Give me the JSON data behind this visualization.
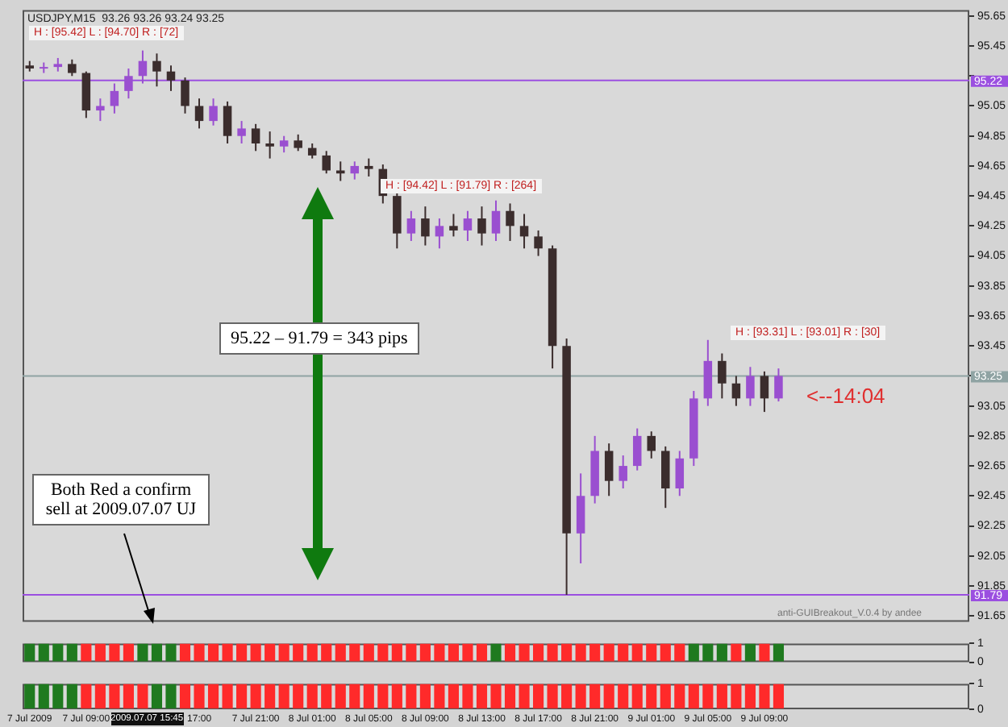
{
  "chart_data": [
    {
      "type": "candlestick",
      "title": "USDJPY,M15  93.26 93.26 93.24 93.25",
      "categories": [
        null,
        null,
        null,
        null,
        null,
        null,
        null,
        null,
        null,
        null,
        null,
        null,
        null,
        null,
        null,
        null,
        null,
        null,
        null,
        null,
        null,
        null,
        null,
        null,
        null,
        null,
        null,
        null,
        null,
        null,
        null,
        null,
        null,
        null,
        null,
        null,
        null,
        null,
        null,
        null,
        null,
        null,
        null,
        null,
        null,
        null,
        null,
        null,
        null,
        null,
        null,
        null,
        null,
        null,
        null,
        null,
        null,
        null,
        null,
        null,
        null,
        null,
        null,
        null,
        null,
        null,
        null
      ],
      "ohlc": [
        [
          95.32,
          95.35,
          95.28,
          95.3
        ],
        [
          95.3,
          95.34,
          95.27,
          95.31
        ],
        [
          95.31,
          95.37,
          95.28,
          95.33
        ],
        [
          95.33,
          95.36,
          95.25,
          95.27
        ],
        [
          95.27,
          95.28,
          94.97,
          95.02
        ],
        [
          95.02,
          95.1,
          94.95,
          95.05
        ],
        [
          95.05,
          95.2,
          95.0,
          95.15
        ],
        [
          95.15,
          95.3,
          95.1,
          95.25
        ],
        [
          95.25,
          95.42,
          95.2,
          95.35
        ],
        [
          95.35,
          95.4,
          95.18,
          95.28
        ],
        [
          95.28,
          95.32,
          95.15,
          95.22
        ],
        [
          95.22,
          95.24,
          95.0,
          95.05
        ],
        [
          95.05,
          95.1,
          94.9,
          94.95
        ],
        [
          94.95,
          95.1,
          94.92,
          95.05
        ],
        [
          95.05,
          95.08,
          94.8,
          94.85
        ],
        [
          94.85,
          94.95,
          94.8,
          94.9
        ],
        [
          94.9,
          94.93,
          94.75,
          94.8
        ],
        [
          94.8,
          94.88,
          94.7,
          94.78
        ],
        [
          94.78,
          94.85,
          94.74,
          94.82
        ],
        [
          94.82,
          94.86,
          94.75,
          94.77
        ],
        [
          94.77,
          94.8,
          94.7,
          94.72
        ],
        [
          94.72,
          94.75,
          94.6,
          94.62
        ],
        [
          94.62,
          94.68,
          94.55,
          94.6
        ],
        [
          94.6,
          94.68,
          94.56,
          94.65
        ],
        [
          94.65,
          94.7,
          94.58,
          94.63
        ],
        [
          94.63,
          94.66,
          94.4,
          94.45
        ],
        [
          94.45,
          94.48,
          94.1,
          94.2
        ],
        [
          94.2,
          94.35,
          94.15,
          94.3
        ],
        [
          94.3,
          94.38,
          94.12,
          94.18
        ],
        [
          94.18,
          94.3,
          94.1,
          94.25
        ],
        [
          94.25,
          94.33,
          94.18,
          94.22
        ],
        [
          94.22,
          94.35,
          94.15,
          94.3
        ],
        [
          94.3,
          94.38,
          94.12,
          94.2
        ],
        [
          94.2,
          94.42,
          94.15,
          94.35
        ],
        [
          94.35,
          94.4,
          94.15,
          94.25
        ],
        [
          94.25,
          94.33,
          94.1,
          94.18
        ],
        [
          94.18,
          94.22,
          94.05,
          94.1
        ],
        [
          94.1,
          94.12,
          93.3,
          93.45
        ],
        [
          93.45,
          93.5,
          91.79,
          92.2
        ],
        [
          92.2,
          92.6,
          92.0,
          92.45
        ],
        [
          92.45,
          92.85,
          92.4,
          92.75
        ],
        [
          92.75,
          92.8,
          92.45,
          92.55
        ],
        [
          92.55,
          92.72,
          92.5,
          92.65
        ],
        [
          92.65,
          92.9,
          92.62,
          92.85
        ],
        [
          92.85,
          92.88,
          92.7,
          92.75
        ],
        [
          92.75,
          92.78,
          92.37,
          92.5
        ],
        [
          92.5,
          92.75,
          92.45,
          92.7
        ],
        [
          92.7,
          93.15,
          92.65,
          93.1
        ],
        [
          93.1,
          93.49,
          93.05,
          93.35
        ],
        [
          93.35,
          93.4,
          93.1,
          93.2
        ],
        [
          93.2,
          93.25,
          93.05,
          93.1
        ],
        [
          93.1,
          93.31,
          93.05,
          93.25
        ],
        [
          93.25,
          93.28,
          93.01,
          93.1
        ],
        [
          93.1,
          93.3,
          93.08,
          93.25
        ],
        null,
        null,
        null,
        null,
        null,
        null,
        null,
        null,
        null,
        null,
        null,
        null,
        null
      ],
      "colors": [
        "#3b2d2d",
        "#9a4fd0",
        "#9a4fd0",
        "#3b2d2d",
        "#3b2d2d",
        "#9a4fd0",
        "#9a4fd0",
        "#9a4fd0",
        "#9a4fd0",
        "#3b2d2d",
        "#3b2d2d",
        "#3b2d2d",
        "#3b2d2d",
        "#9a4fd0",
        "#3b2d2d",
        "#9a4fd0",
        "#3b2d2d",
        "#3b2d2d",
        "#9a4fd0",
        "#3b2d2d",
        "#3b2d2d",
        "#3b2d2d",
        "#3b2d2d",
        "#9a4fd0",
        "#3b2d2d",
        "#3b2d2d",
        "#3b2d2d",
        "#9a4fd0",
        "#3b2d2d",
        "#9a4fd0",
        "#3b2d2d",
        "#9a4fd0",
        "#3b2d2d",
        "#9a4fd0",
        "#3b2d2d",
        "#3b2d2d",
        "#3b2d2d",
        "#3b2d2d",
        "#3b2d2d",
        "#9a4fd0",
        "#9a4fd0",
        "#3b2d2d",
        "#9a4fd0",
        "#9a4fd0",
        "#3b2d2d",
        "#3b2d2d",
        "#9a4fd0",
        "#9a4fd0",
        "#9a4fd0",
        "#3b2d2d",
        "#3b2d2d",
        "#9a4fd0",
        "#3b2d2d",
        "#9a4fd0",
        null,
        null,
        null,
        null,
        null,
        null,
        null,
        null,
        null,
        null,
        null,
        null,
        null
      ],
      "ylim": [
        91.61,
        95.69
      ],
      "yticks": [
        95.65,
        95.45,
        {
          "value": 95.25,
          "label": null
        },
        95.05,
        94.85,
        94.65,
        94.45,
        94.25,
        94.05,
        93.85,
        93.65,
        93.45,
        {
          "value": 93.25,
          "label": null
        },
        93.05,
        92.85,
        92.65,
        92.45,
        92.25,
        92.05,
        91.85,
        91.65
      ],
      "ref_lines": [
        {
          "axis": "y",
          "value": 95.22,
          "label": "95.22",
          "color": "#9b4fe0"
        },
        {
          "axis": "y",
          "value": 91.79,
          "label": "91.79",
          "color": "#9b4fe0"
        },
        {
          "axis": "y",
          "value": 93.25,
          "label": "93.25",
          "color": "#8fa3a3"
        }
      ],
      "annotations": [
        "H : [95.42]   L : [94.70]   R : [72]",
        "H : [94.42]   L : [91.79]   R : [264]",
        "H : [93.31]   L : [93.01]   R : [30]",
        "95.22 – 91.79 = 343 pips",
        "Both Red a confirm sell at 2009.07.07 UJ",
        "<--14:04",
        "anti-GUIBreakout_V.0.4 by andee",
        "2009.07.07 15:45"
      ],
      "tick_labels": "y"
    },
    {
      "type": "bar",
      "categories": [
        null,
        null,
        null,
        null,
        null,
        null,
        null,
        null,
        null,
        null,
        null,
        null,
        null,
        null,
        null,
        null,
        null,
        null,
        null,
        null,
        null,
        null,
        null,
        null,
        null,
        null,
        null,
        null,
        null,
        null,
        null,
        null,
        null,
        null,
        null,
        null,
        null,
        null,
        null,
        null,
        null,
        null,
        null,
        null,
        null,
        null,
        null,
        null,
        null,
        null,
        null,
        null,
        null,
        null,
        null,
        null,
        null,
        null,
        null,
        null,
        null,
        null,
        null,
        null,
        null,
        null,
        null
      ],
      "values": [
        1,
        1,
        1,
        1,
        1,
        1,
        1,
        1,
        1,
        1,
        1,
        1,
        1,
        1,
        1,
        1,
        1,
        1,
        1,
        1,
        1,
        1,
        1,
        1,
        1,
        1,
        1,
        1,
        1,
        1,
        1,
        1,
        1,
        1,
        1,
        1,
        1,
        1,
        1,
        1,
        1,
        1,
        1,
        1,
        1,
        1,
        1,
        1,
        1,
        1,
        1,
        1,
        1,
        1,
        null,
        null,
        null,
        null,
        null,
        null,
        null,
        null,
        null,
        null,
        null,
        null,
        null
      ],
      "colors": [
        "#1f7a1f",
        "#1f7a1f",
        "#1f7a1f",
        "#1f7a1f",
        "#ff2a2a",
        "#ff2a2a",
        "#ff2a2a",
        "#ff2a2a",
        "#1f7a1f",
        "#1f7a1f",
        "#1f7a1f",
        "#ff2a2a",
        "#ff2a2a",
        "#ff2a2a",
        "#ff2a2a",
        "#ff2a2a",
        "#ff2a2a",
        "#ff2a2a",
        "#ff2a2a",
        "#ff2a2a",
        "#ff2a2a",
        "#ff2a2a",
        "#ff2a2a",
        "#ff2a2a",
        "#ff2a2a",
        "#ff2a2a",
        "#ff2a2a",
        "#ff2a2a",
        "#ff2a2a",
        "#ff2a2a",
        "#ff2a2a",
        "#ff2a2a",
        "#ff2a2a",
        "#1f7a1f",
        "#ff2a2a",
        "#ff2a2a",
        "#ff2a2a",
        "#ff2a2a",
        "#ff2a2a",
        "#ff2a2a",
        "#ff2a2a",
        "#ff2a2a",
        "#ff2a2a",
        "#ff2a2a",
        "#ff2a2a",
        "#ff2a2a",
        "#ff2a2a",
        "#1f7a1f",
        "#1f7a1f",
        "#1f7a1f",
        "#ff2a2a",
        "#1f7a1f",
        "#ff2a2a",
        "#1f7a1f",
        null,
        null,
        null,
        null,
        null,
        null,
        null,
        null,
        null,
        null,
        null,
        null,
        null
      ],
      "ylim": [
        0,
        1
      ],
      "yticks": [
        0,
        1
      ],
      "tick_labels": "y"
    },
    {
      "type": "bar",
      "categories": [
        "7 Jul 2009",
        null,
        null,
        null,
        "7 Jul 09:00",
        null,
        null,
        null,
        null,
        null,
        null,
        null,
        "17:00",
        null,
        null,
        null,
        "7 Jul 21:00",
        null,
        null,
        null,
        "8 Jul 01:00",
        null,
        null,
        null,
        "8 Jul 05:00",
        null,
        null,
        null,
        "8 Jul 09:00",
        null,
        null,
        null,
        "8 Jul 13:00",
        null,
        null,
        null,
        "8 Jul 17:00",
        null,
        null,
        null,
        "8 Jul 21:00",
        null,
        null,
        null,
        "9 Jul 01:00",
        null,
        null,
        null,
        "9 Jul 05:00",
        null,
        null,
        null,
        "9 Jul 09:00",
        null,
        null,
        null,
        null,
        null,
        null,
        null,
        null,
        null,
        null,
        null,
        null,
        null,
        null
      ],
      "values": [
        1,
        1,
        1,
        1,
        1,
        1,
        1,
        1,
        1,
        1,
        1,
        1,
        1,
        1,
        1,
        1,
        1,
        1,
        1,
        1,
        1,
        1,
        1,
        1,
        1,
        1,
        1,
        1,
        1,
        1,
        1,
        1,
        1,
        1,
        1,
        1,
        1,
        1,
        1,
        1,
        1,
        1,
        1,
        1,
        1,
        1,
        1,
        1,
        1,
        1,
        1,
        1,
        1,
        1,
        null,
        null,
        null,
        null,
        null,
        null,
        null,
        null,
        null,
        null,
        null,
        null,
        null
      ],
      "colors": [
        "#1f7a1f",
        "#1f7a1f",
        "#1f7a1f",
        "#1f7a1f",
        "#ff2a2a",
        "#ff2a2a",
        "#ff2a2a",
        "#ff2a2a",
        "#ff2a2a",
        "#1f7a1f",
        "#1f7a1f",
        "#ff2a2a",
        "#ff2a2a",
        "#ff2a2a",
        "#ff2a2a",
        "#ff2a2a",
        "#ff2a2a",
        "#ff2a2a",
        "#ff2a2a",
        "#ff2a2a",
        "#ff2a2a",
        "#ff2a2a",
        "#ff2a2a",
        "#ff2a2a",
        "#ff2a2a",
        "#ff2a2a",
        "#ff2a2a",
        "#ff2a2a",
        "#ff2a2a",
        "#ff2a2a",
        "#ff2a2a",
        "#ff2a2a",
        "#ff2a2a",
        "#ff2a2a",
        "#ff2a2a",
        "#ff2a2a",
        "#ff2a2a",
        "#ff2a2a",
        "#ff2a2a",
        "#ff2a2a",
        "#ff2a2a",
        "#ff2a2a",
        "#ff2a2a",
        "#ff2a2a",
        "#ff2a2a",
        "#ff2a2a",
        "#ff2a2a",
        "#ff2a2a",
        "#ff2a2a",
        "#ff2a2a",
        "#ff2a2a",
        "#ff2a2a",
        "#ff2a2a",
        "#ff2a2a",
        null,
        null,
        null,
        null,
        null,
        null,
        null,
        null,
        null,
        null,
        null,
        null,
        null
      ],
      "ylim": [
        0,
        1
      ],
      "yticks": [
        0,
        1
      ]
    }
  ]
}
